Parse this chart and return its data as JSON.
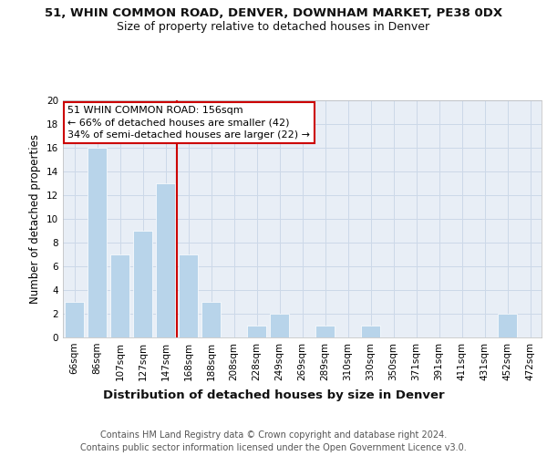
{
  "title": "51, WHIN COMMON ROAD, DENVER, DOWNHAM MARKET, PE38 0DX",
  "subtitle": "Size of property relative to detached houses in Denver",
  "xlabel": "Distribution of detached houses by size in Denver",
  "ylabel": "Number of detached properties",
  "categories": [
    "66sqm",
    "86sqm",
    "107sqm",
    "127sqm",
    "147sqm",
    "168sqm",
    "188sqm",
    "208sqm",
    "228sqm",
    "249sqm",
    "269sqm",
    "289sqm",
    "310sqm",
    "330sqm",
    "350sqm",
    "371sqm",
    "391sqm",
    "411sqm",
    "431sqm",
    "452sqm",
    "472sqm"
  ],
  "values": [
    3,
    16,
    7,
    9,
    13,
    7,
    3,
    0,
    1,
    2,
    0,
    1,
    0,
    1,
    0,
    0,
    0,
    0,
    0,
    2,
    0
  ],
  "bar_color": "#b8d4ea",
  "grid_color": "#ccd8e8",
  "background_color": "#e8eef6",
  "vline_x_index": 4.5,
  "vline_color": "#cc0000",
  "annotation_text": "51 WHIN COMMON ROAD: 156sqm\n← 66% of detached houses are smaller (42)\n34% of semi-detached houses are larger (22) →",
  "annotation_box_color": "#cc0000",
  "ylim": [
    0,
    20
  ],
  "yticks": [
    0,
    2,
    4,
    6,
    8,
    10,
    12,
    14,
    16,
    18,
    20
  ],
  "footer_line1": "Contains HM Land Registry data © Crown copyright and database right 2024.",
  "footer_line2": "Contains public sector information licensed under the Open Government Licence v3.0.",
  "title_fontsize": 9.5,
  "subtitle_fontsize": 9,
  "xlabel_fontsize": 9.5,
  "ylabel_fontsize": 8.5,
  "tick_fontsize": 7.5,
  "annotation_fontsize": 8,
  "footer_fontsize": 7
}
